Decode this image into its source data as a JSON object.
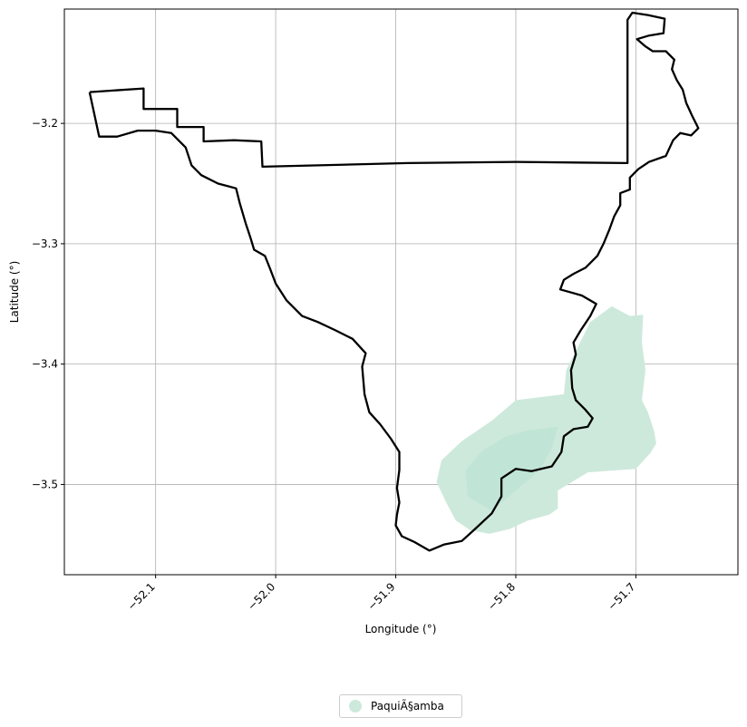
{
  "chart_data": {
    "type": "map",
    "xlabel": "Longitude (°)",
    "ylabel": "Latitude (°)",
    "xlim": [
      -52.176,
      -51.615
    ],
    "ylim": [
      -3.575,
      -3.105
    ],
    "x_ticks": [
      -52.1,
      -52.0,
      -51.9,
      -51.8,
      -51.7
    ],
    "x_tick_labels": [
      "−52.1",
      "−52.0",
      "−51.9",
      "−51.8",
      "−51.7"
    ],
    "y_ticks": [
      -3.2,
      -3.3,
      -3.4,
      -3.5
    ],
    "y_tick_labels": [
      "−3.2",
      "−3.3",
      "−3.4",
      "−3.5"
    ],
    "grid": true,
    "legend": {
      "placement": "bottom-center",
      "entries": [
        {
          "label": "PaquiÃ§amba",
          "color": "#cde9dc"
        }
      ]
    },
    "boundary": {
      "color": "#000000",
      "points": [
        [
          -52.155,
          -3.174
        ],
        [
          -52.11,
          -3.171
        ],
        [
          -52.11,
          -3.188
        ],
        [
          -52.082,
          -3.188
        ],
        [
          -52.082,
          -3.203
        ],
        [
          -52.06,
          -3.203
        ],
        [
          -52.06,
          -3.215
        ],
        [
          -52.035,
          -3.214
        ],
        [
          -52.012,
          -3.215
        ],
        [
          -52.011,
          -3.236
        ],
        [
          -51.89,
          -3.233
        ],
        [
          -51.8,
          -3.232
        ],
        [
          -51.707,
          -3.233
        ],
        [
          -51.707,
          -3.208
        ],
        [
          -51.707,
          -3.114
        ],
        [
          -51.703,
          -3.108
        ],
        [
          -51.69,
          -3.11
        ],
        [
          -51.676,
          -3.113
        ],
        [
          -51.677,
          -3.125
        ],
        [
          -51.689,
          -3.127
        ],
        [
          -51.699,
          -3.13
        ],
        [
          -51.692,
          -3.136
        ],
        [
          -51.686,
          -3.14
        ],
        [
          -51.675,
          -3.14
        ],
        [
          -51.668,
          -3.147
        ],
        [
          -51.67,
          -3.155
        ],
        [
          -51.666,
          -3.164
        ],
        [
          -51.661,
          -3.172
        ],
        [
          -51.658,
          -3.183
        ],
        [
          -51.653,
          -3.194
        ],
        [
          -51.648,
          -3.204
        ],
        [
          -51.654,
          -3.21
        ],
        [
          -51.663,
          -3.208
        ],
        [
          -51.669,
          -3.214
        ],
        [
          -51.675,
          -3.227
        ],
        [
          -51.689,
          -3.232
        ],
        [
          -51.698,
          -3.238
        ],
        [
          -51.705,
          -3.245
        ],
        [
          -51.705,
          -3.255
        ],
        [
          -51.713,
          -3.258
        ],
        [
          -51.713,
          -3.268
        ],
        [
          -51.718,
          -3.277
        ],
        [
          -51.722,
          -3.288
        ],
        [
          -51.727,
          -3.3
        ],
        [
          -51.732,
          -3.31
        ],
        [
          -51.742,
          -3.32
        ],
        [
          -51.752,
          -3.325
        ],
        [
          -51.76,
          -3.33
        ],
        [
          -51.763,
          -3.338
        ],
        [
          -51.745,
          -3.343
        ],
        [
          -51.733,
          -3.35
        ],
        [
          -51.738,
          -3.36
        ],
        [
          -51.746,
          -3.372
        ],
        [
          -51.752,
          -3.382
        ],
        [
          -51.75,
          -3.392
        ],
        [
          -51.754,
          -3.405
        ],
        [
          -51.753,
          -3.42
        ],
        [
          -51.75,
          -3.43
        ],
        [
          -51.742,
          -3.438
        ],
        [
          -51.736,
          -3.445
        ],
        [
          -51.74,
          -3.452
        ],
        [
          -51.752,
          -3.454
        ],
        [
          -51.76,
          -3.46
        ],
        [
          -51.762,
          -3.473
        ],
        [
          -51.77,
          -3.485
        ],
        [
          -51.787,
          -3.489
        ],
        [
          -51.8,
          -3.487
        ],
        [
          -51.812,
          -3.495
        ],
        [
          -51.812,
          -3.51
        ],
        [
          -51.82,
          -3.524
        ],
        [
          -51.835,
          -3.538
        ],
        [
          -51.845,
          -3.547
        ],
        [
          -51.86,
          -3.55
        ],
        [
          -51.872,
          -3.555
        ],
        [
          -51.884,
          -3.548
        ],
        [
          -51.895,
          -3.543
        ],
        [
          -51.9,
          -3.534
        ],
        [
          -51.899,
          -3.525
        ],
        [
          -51.897,
          -3.515
        ],
        [
          -51.899,
          -3.503
        ],
        [
          -51.897,
          -3.488
        ],
        [
          -51.897,
          -3.473
        ],
        [
          -51.904,
          -3.462
        ],
        [
          -51.913,
          -3.45
        ],
        [
          -51.922,
          -3.44
        ],
        [
          -51.926,
          -3.425
        ],
        [
          -51.928,
          -3.402
        ],
        [
          -51.925,
          -3.391
        ],
        [
          -51.936,
          -3.379
        ],
        [
          -51.95,
          -3.372
        ],
        [
          -51.965,
          -3.365
        ],
        [
          -51.978,
          -3.36
        ],
        [
          -51.991,
          -3.347
        ],
        [
          -52.0,
          -3.333
        ],
        [
          -52.005,
          -3.32
        ],
        [
          -52.009,
          -3.31
        ],
        [
          -52.018,
          -3.305
        ],
        [
          -52.021,
          -3.295
        ],
        [
          -52.025,
          -3.283
        ],
        [
          -52.03,
          -3.266
        ],
        [
          -52.033,
          -3.254
        ],
        [
          -52.048,
          -3.25
        ],
        [
          -52.062,
          -3.243
        ],
        [
          -52.07,
          -3.235
        ],
        [
          -52.075,
          -3.22
        ],
        [
          -52.087,
          -3.208
        ],
        [
          -52.1,
          -3.206
        ],
        [
          -52.115,
          -3.206
        ],
        [
          -52.132,
          -3.211
        ],
        [
          -52.147,
          -3.211
        ],
        [
          -52.155,
          -3.174
        ]
      ]
    },
    "territory": {
      "color": "#cde9dc",
      "points": [
        [
          -51.72,
          -3.352
        ],
        [
          -51.705,
          -3.36
        ],
        [
          -51.694,
          -3.359
        ],
        [
          -51.695,
          -3.382
        ],
        [
          -51.692,
          -3.405
        ],
        [
          -51.695,
          -3.43
        ],
        [
          -51.69,
          -3.44
        ],
        [
          -51.685,
          -3.455
        ],
        [
          -51.683,
          -3.466
        ],
        [
          -51.688,
          -3.474
        ],
        [
          -51.7,
          -3.487
        ],
        [
          -51.74,
          -3.49
        ],
        [
          -51.765,
          -3.505
        ],
        [
          -51.765,
          -3.52
        ],
        [
          -51.772,
          -3.525
        ],
        [
          -51.79,
          -3.53
        ],
        [
          -51.805,
          -3.537
        ],
        [
          -51.822,
          -3.541
        ],
        [
          -51.838,
          -3.538
        ],
        [
          -51.85,
          -3.53
        ],
        [
          -51.858,
          -3.515
        ],
        [
          -51.866,
          -3.498
        ],
        [
          -51.862,
          -3.48
        ],
        [
          -51.845,
          -3.464
        ],
        [
          -51.82,
          -3.447
        ],
        [
          -51.8,
          -3.43
        ],
        [
          -51.76,
          -3.425
        ],
        [
          -51.758,
          -3.405
        ],
        [
          -51.748,
          -3.385
        ],
        [
          -51.738,
          -3.365
        ],
        [
          -51.72,
          -3.352
        ]
      ]
    },
    "territory_inner": {
      "color": "#bde4d4",
      "points": [
        [
          -51.765,
          -3.452
        ],
        [
          -51.79,
          -3.455
        ],
        [
          -51.808,
          -3.46
        ],
        [
          -51.828,
          -3.472
        ],
        [
          -51.842,
          -3.488
        ],
        [
          -51.84,
          -3.51
        ],
        [
          -51.82,
          -3.522
        ],
        [
          -51.8,
          -3.505
        ],
        [
          -51.78,
          -3.488
        ],
        [
          -51.77,
          -3.47
        ],
        [
          -51.765,
          -3.452
        ]
      ]
    }
  }
}
